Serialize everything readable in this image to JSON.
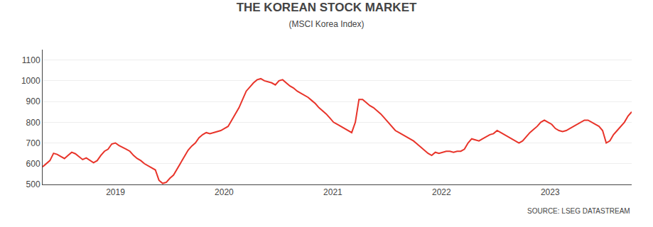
{
  "chart_data": {
    "type": "line",
    "title": "THE KOREAN STOCK MARKET",
    "subtitle": "(MSCI Korea Index)",
    "annotations": [
      "SOURCE: LSEG DATASTREAM"
    ],
    "color": "#e8342a",
    "grid": "y",
    "xlim": [
      2018.33,
      2023.75
    ],
    "xticks": [
      2019,
      2020,
      2021,
      2022,
      2023
    ],
    "ylim": [
      500,
      1150
    ],
    "yticks": [
      500,
      600,
      700,
      800,
      900,
      1000,
      1100
    ],
    "x": [
      2018.33,
      2018.3635,
      2018.3969,
      2018.4304,
      2018.4638,
      2018.4973,
      2018.5307,
      2018.5642,
      2018.5977,
      2018.6311,
      2018.6646,
      2018.698,
      2018.7315,
      2018.7649,
      2018.7984,
      2018.8319,
      2018.8653,
      2018.8988,
      2018.9322,
      2018.9657,
      2018.9991,
      2019.0326,
      2019.066,
      2019.0995,
      2019.133,
      2019.1664,
      2019.1999,
      2019.2333,
      2019.2668,
      2019.3002,
      2019.3337,
      2019.3672,
      2019.4006,
      2019.4341,
      2019.4675,
      2019.501,
      2019.5344,
      2019.5679,
      2019.6014,
      2019.6348,
      2019.6683,
      2019.7017,
      2019.7352,
      2019.7686,
      2019.8021,
      2019.8356,
      2019.869,
      2019.9025,
      2019.9359,
      2019.9694,
      2020.0028,
      2020.0363,
      2020.0698,
      2020.1032,
      2020.1367,
      2020.1701,
      2020.2036,
      2020.237,
      2020.2705,
      2020.304,
      2020.3374,
      2020.3709,
      2020.4043,
      2020.4378,
      2020.4712,
      2020.5047,
      2020.5381,
      2020.5716,
      2020.6051,
      2020.6385,
      2020.672,
      2020.7054,
      2020.7389,
      2020.7723,
      2020.8058,
      2020.8393,
      2020.8727,
      2020.9062,
      2020.9396,
      2020.9731,
      2021.0065,
      2021.04,
      2021.0735,
      2021.1069,
      2021.1404,
      2021.1738,
      2021.2073,
      2021.2407,
      2021.2742,
      2021.3077,
      2021.3411,
      2021.3746,
      2021.408,
      2021.4415,
      2021.4749,
      2021.5084,
      2021.5419,
      2021.5753,
      2021.6088,
      2021.6422,
      2021.6757,
      2021.7091,
      2021.7426,
      2021.776,
      2021.8095,
      2021.843,
      2021.8764,
      2021.9099,
      2021.9433,
      2021.9768,
      2022.0102,
      2022.0437,
      2022.0772,
      2022.1106,
      2022.1441,
      2022.1775,
      2022.211,
      2022.2444,
      2022.2779,
      2022.3114,
      2022.3448,
      2022.3783,
      2022.4117,
      2022.4452,
      2022.4786,
      2022.5121,
      2022.5456,
      2022.579,
      2022.6125,
      2022.6459,
      2022.6794,
      2022.7128,
      2022.7463,
      2022.7798,
      2022.8132,
      2022.8467,
      2022.8801,
      2022.9136,
      2022.947,
      2022.9805,
      2023.014,
      2023.0474,
      2023.0809,
      2023.1143,
      2023.1478,
      2023.1812,
      2023.2147,
      2023.2481,
      2023.2816,
      2023.3151,
      2023.3485,
      2023.382,
      2023.4154,
      2023.4489,
      2023.4823,
      2023.5158,
      2023.5493,
      2023.5827,
      2023.6162,
      2023.6496,
      2023.6831,
      2023.7165,
      2023.75
    ],
    "values": [
      585,
      600,
      615,
      650,
      645,
      635,
      625,
      640,
      655,
      648,
      635,
      620,
      628,
      618,
      605,
      615,
      640,
      660,
      670,
      695,
      700,
      688,
      680,
      670,
      660,
      640,
      625,
      615,
      600,
      590,
      580,
      570,
      520,
      505,
      510,
      530,
      545,
      575,
      610,
      640,
      665,
      685,
      700,
      725,
      740,
      750,
      745,
      750,
      755,
      760,
      770,
      780,
      810,
      840,
      870,
      910,
      950,
      970,
      990,
      1005,
      1010,
      1000,
      995,
      990,
      980,
      1000,
      1005,
      990,
      975,
      965,
      950,
      940,
      930,
      920,
      905,
      890,
      870,
      855,
      840,
      820,
      800,
      790,
      780,
      770,
      760,
      750,
      800,
      910,
      910,
      895,
      880,
      870,
      855,
      840,
      820,
      800,
      780,
      760,
      750,
      740,
      730,
      720,
      710,
      695,
      680,
      665,
      650,
      640,
      655,
      650,
      655,
      660,
      660,
      655,
      660,
      660,
      670,
      700,
      720,
      715,
      710,
      720,
      730,
      740,
      745,
      760,
      750,
      740,
      730,
      720,
      710,
      700,
      710,
      730,
      750,
      765,
      780,
      800,
      810,
      800,
      790,
      770,
      760,
      755,
      760,
      770,
      780,
      790,
      800,
      810,
      810,
      800,
      790,
      780,
      760,
      700,
      710,
      740,
      760,
      780,
      800,
      830,
      850
    ]
  }
}
